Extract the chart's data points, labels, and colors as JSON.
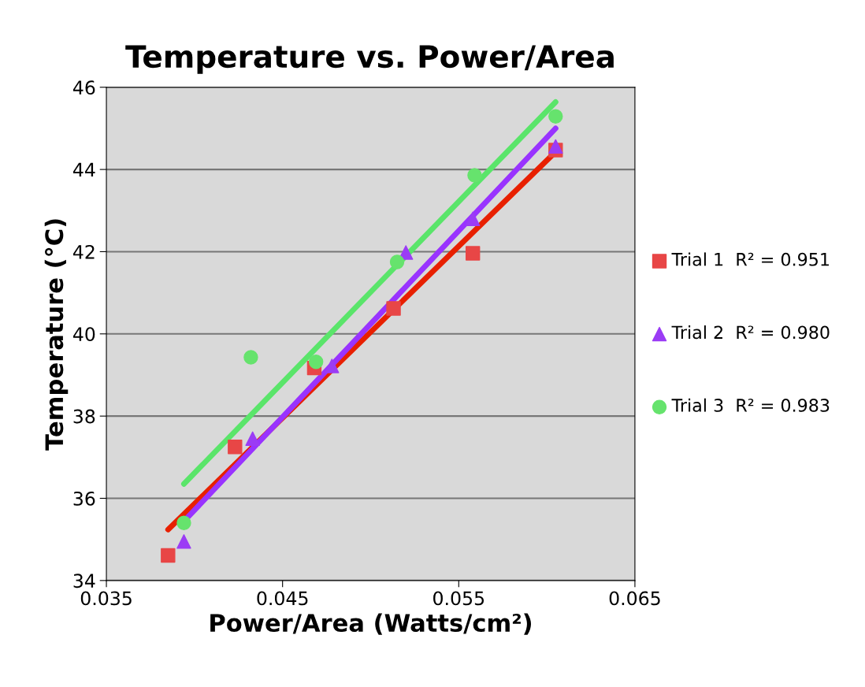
{
  "chart_data": {
    "type": "scatter",
    "title": "Temperature vs. Power/Area",
    "xlabel": "Power/Area (Watts/cm²)",
    "ylabel": "Temperature (°C)",
    "xlim": [
      0.035,
      0.065
    ],
    "xticks": [
      {
        "value": 0.035,
        "label": "0.035"
      },
      {
        "value": 0.045,
        "label": "0.045"
      },
      {
        "value": 0.055,
        "label": "0.055"
      },
      {
        "value": 0.065,
        "label": "0.065"
      }
    ],
    "ylim": [
      34,
      46
    ],
    "yticks": [
      34,
      36,
      38,
      40,
      42,
      44,
      46
    ],
    "grid": "y",
    "legend": "right",
    "series": [
      {
        "name": "Trial 1  R² = 0.951",
        "color": "#e84646",
        "marker": "square",
        "x": [
          0.0385,
          0.0423,
          0.0468,
          0.0513,
          0.0558,
          0.0605
        ],
        "values": [
          34.61,
          37.25,
          39.17,
          40.62,
          41.96,
          44.47
        ]
      },
      {
        "name": "Trial 2  R² = 0.980",
        "color": "#9b3cf5",
        "marker": "triangle",
        "x": [
          0.0394,
          0.0433,
          0.0478,
          0.052,
          0.0558,
          0.0605
        ],
        "values": [
          34.95,
          37.45,
          39.22,
          41.98,
          42.8,
          44.56
        ]
      },
      {
        "name": "Trial 3  R² = 0.983",
        "color": "#66e36d",
        "marker": "circle",
        "x": [
          0.0394,
          0.0432,
          0.0469,
          0.0515,
          0.0559,
          0.0605
        ],
        "values": [
          35.4,
          39.43,
          39.32,
          41.75,
          43.86,
          45.29
        ]
      },
      {
        "type": "line",
        "color": "#e82000",
        "x": [
          0.0385,
          0.0605
        ],
        "values": [
          35.24,
          44.43
        ]
      },
      {
        "type": "line",
        "color": "#9933ff",
        "x": [
          0.0394,
          0.0605
        ],
        "values": [
          35.44,
          45.0
        ]
      },
      {
        "type": "line",
        "color": "#5ae56a",
        "x": [
          0.0394,
          0.0605
        ],
        "values": [
          36.35,
          45.64
        ]
      }
    ]
  }
}
